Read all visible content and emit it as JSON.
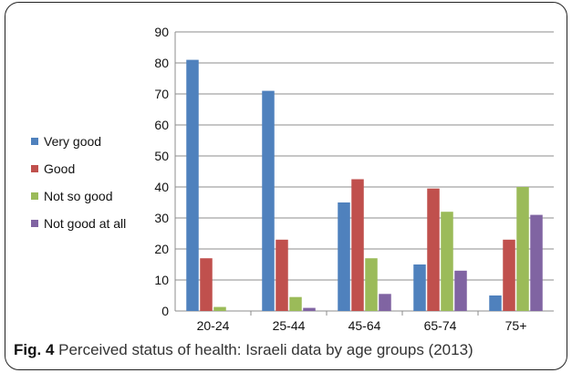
{
  "chart_data": {
    "type": "bar",
    "categories": [
      "20-24",
      "25-44",
      "45-64",
      "65-74",
      "75+"
    ],
    "series": [
      {
        "name": "Very good",
        "color": "#4f81bd",
        "values": [
          81,
          71,
          35,
          15,
          5
        ]
      },
      {
        "name": "Good",
        "color": "#c0504d",
        "values": [
          17,
          23,
          42.5,
          39.5,
          23
        ]
      },
      {
        "name": "Not so good",
        "color": "#9bbb59",
        "values": [
          1.3,
          4.5,
          17,
          32,
          40
        ]
      },
      {
        "name": "Not good at all",
        "color": "#8064a2",
        "values": [
          0,
          1,
          5.5,
          13,
          31
        ]
      }
    ],
    "ylim": [
      0,
      90
    ],
    "yticks": [
      "0",
      "10",
      "20",
      "30",
      "40",
      "50",
      "60",
      "70",
      "80",
      "90"
    ],
    "grid": true,
    "legend_position": "left"
  },
  "caption": {
    "label": "Fig. 4",
    "text": " Perceived status of health: Israeli data by age groups (2013)"
  }
}
